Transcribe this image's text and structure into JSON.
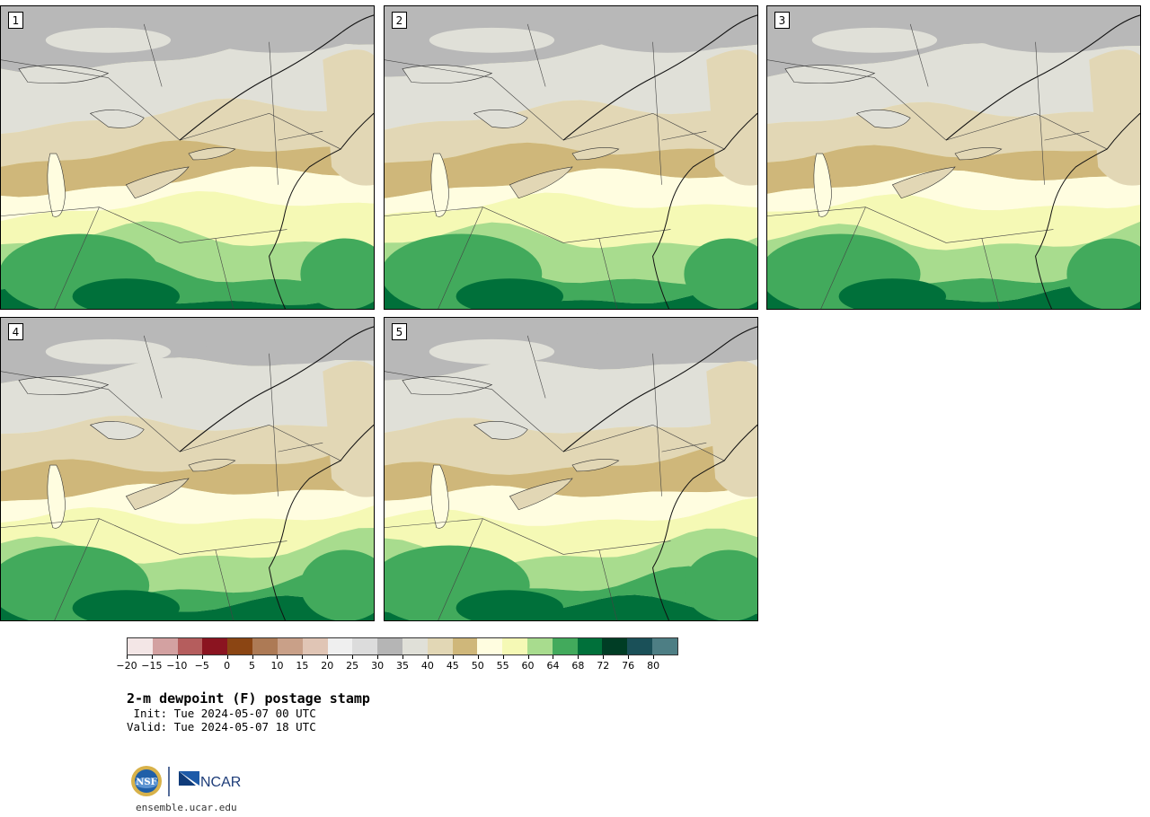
{
  "panels": [
    {
      "label": "1"
    },
    {
      "label": "2"
    },
    {
      "label": "3"
    },
    {
      "label": "4"
    },
    {
      "label": "5"
    }
  ],
  "colorbar": {
    "colors": [
      "#f3e6e6",
      "#d3a1a1",
      "#b55d5d",
      "#8b1420",
      "#8b4513",
      "#ad7a55",
      "#c9a088",
      "#e0c5b5",
      "#efefef",
      "#dcdcdc",
      "#b5b5b5",
      "#e0e0d8",
      "#e2d7b5",
      "#cfb77a",
      "#fffde0",
      "#f5f9b5",
      "#a8dc8e",
      "#42aa5c",
      "#00703a",
      "#003d25",
      "#1a5058",
      "#4d7e84"
    ],
    "tick_labels": [
      "−20",
      "−15",
      "−10",
      "−5",
      "0",
      "5",
      "10",
      "15",
      "20",
      "25",
      "30",
      "35",
      "40",
      "45",
      "50",
      "55",
      "60",
      "64",
      "68",
      "72",
      "76",
      "80"
    ]
  },
  "title": "2-m dewpoint (F) postage stamp",
  "init": " Init: Tue 2024-05-07 00 UTC",
  "valid": "Valid: Tue 2024-05-07 18 UTC",
  "logos": {
    "left": "NSF",
    "right": "NCAR"
  },
  "url": "ensemble.ucar.edu"
}
